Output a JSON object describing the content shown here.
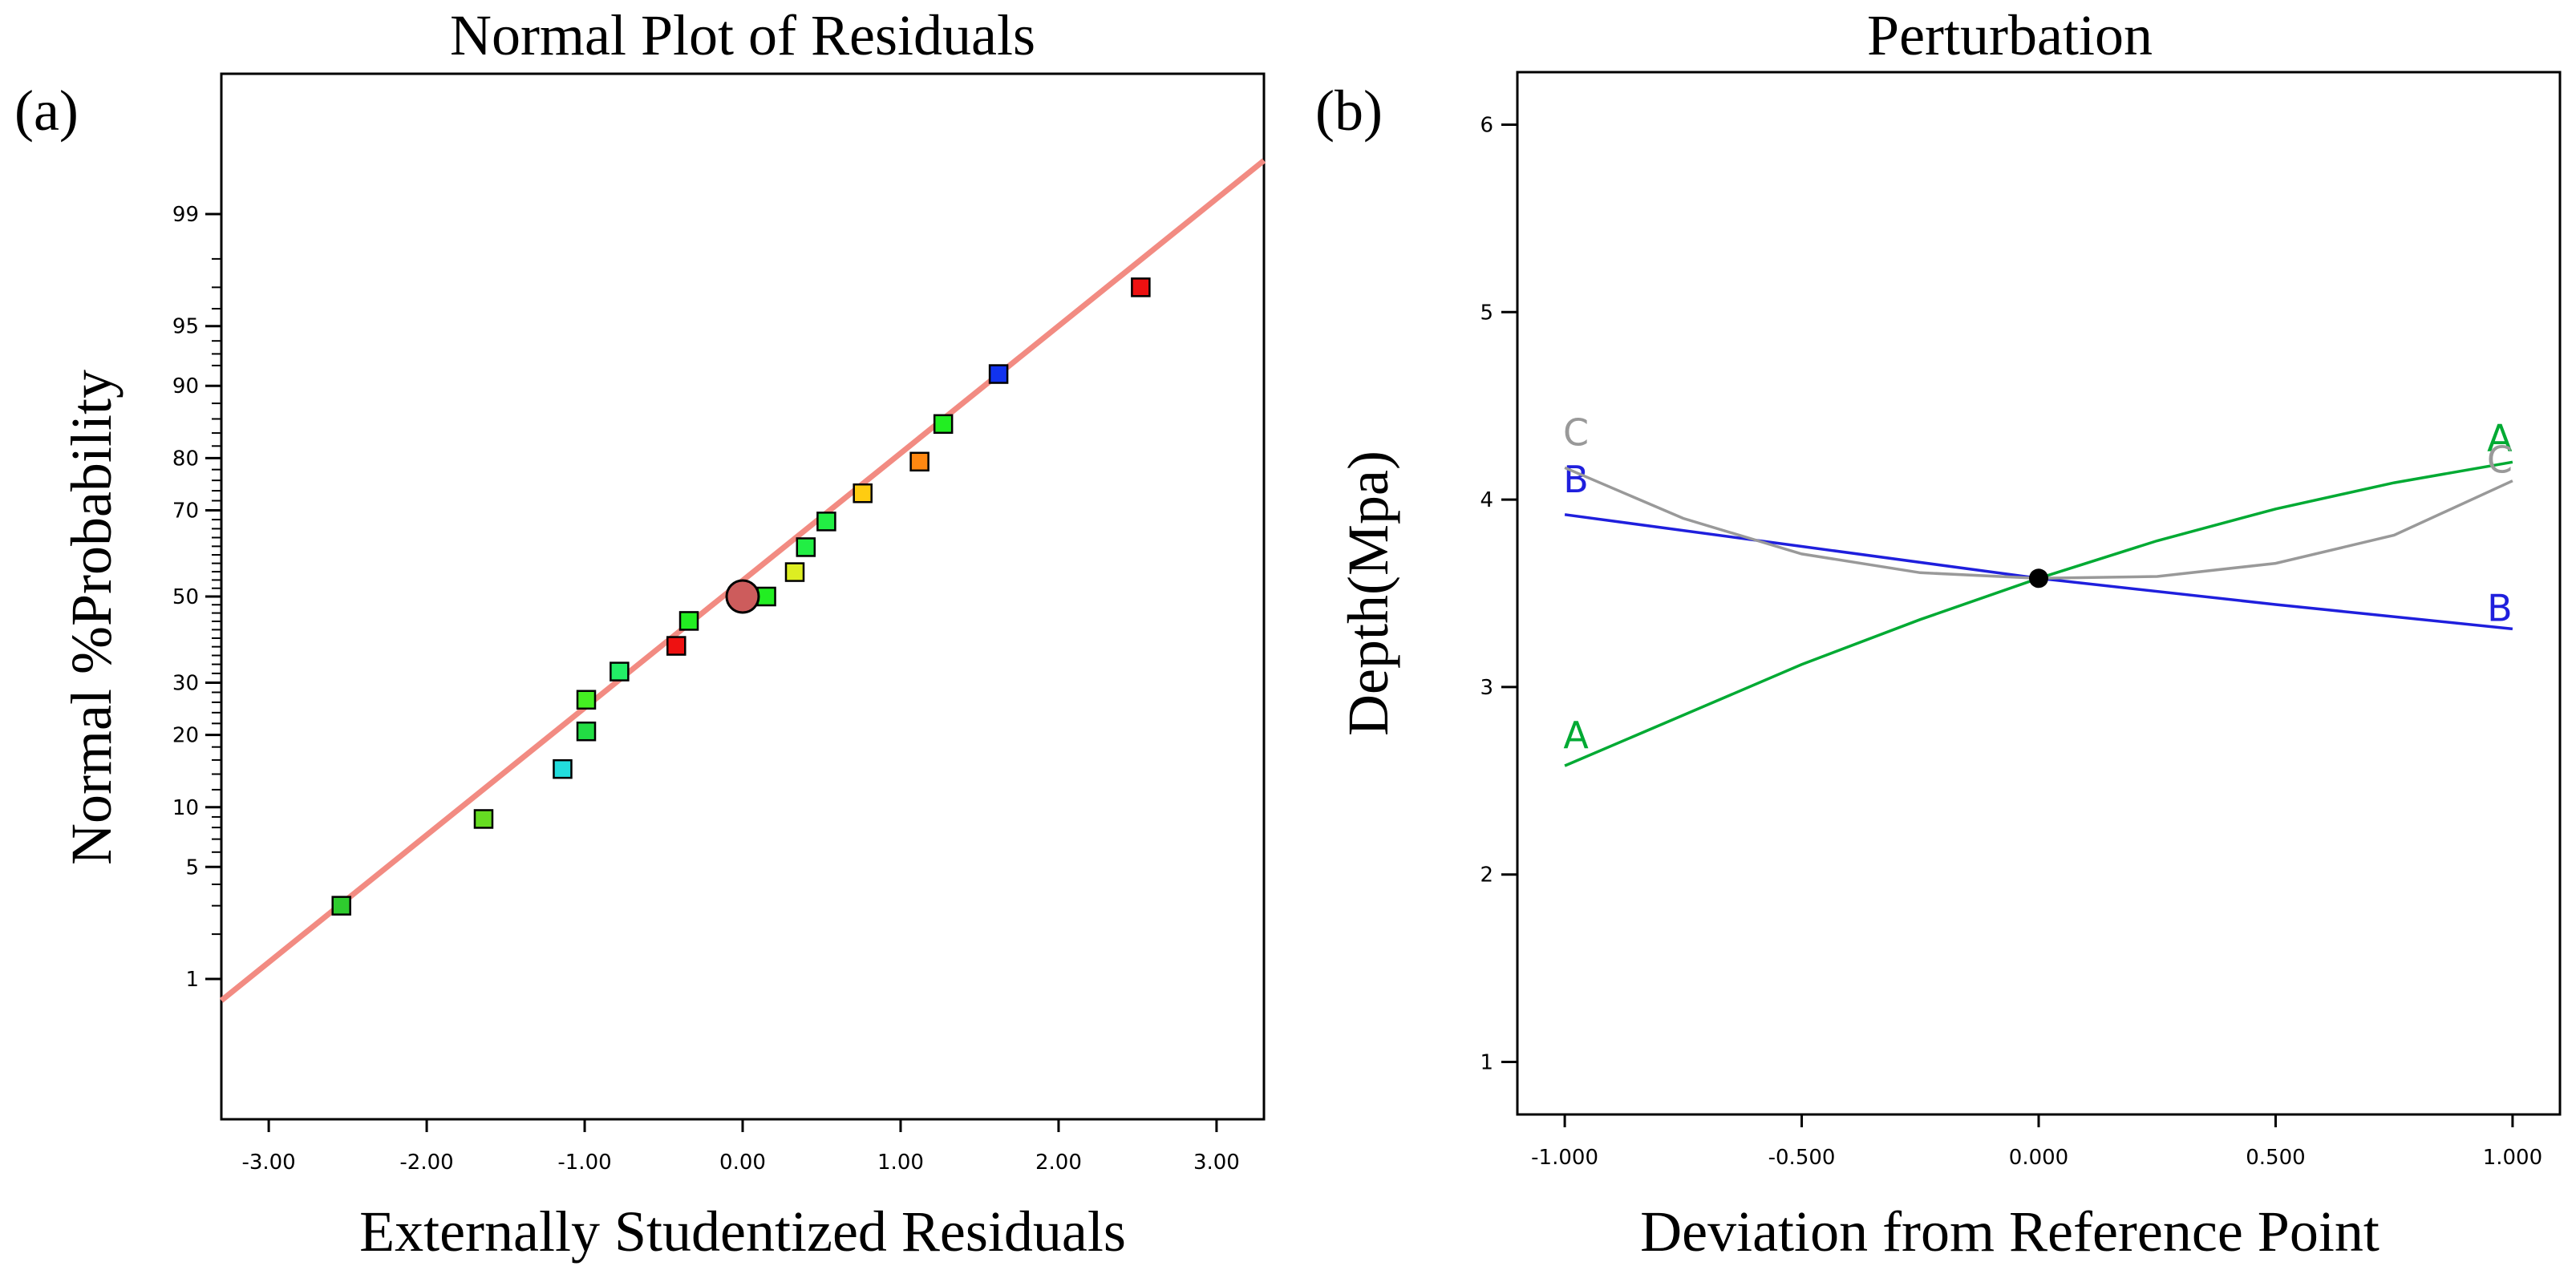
{
  "chart_data": [
    {
      "type": "scatter",
      "panel_label": "(a)",
      "title": "Normal Plot of Residuals",
      "xlabel": "Externally Studentized Residuals",
      "ylabel": "Normal %Probability",
      "xlim": [
        -3.3,
        3.3
      ],
      "x_ticks": [
        "-3.00",
        "-2.00",
        "-1.00",
        "0.00",
        "1.00",
        "2.00",
        "3.00"
      ],
      "x_tick_values": [
        -3,
        -2,
        -1,
        0,
        1,
        2,
        3
      ],
      "y_scale": "normal-probability",
      "y_tick_labels": [
        "1",
        "5",
        "10",
        "20",
        "30",
        "50",
        "70",
        "80",
        "90",
        "95",
        "99"
      ],
      "y_tick_values": [
        1,
        5,
        10,
        20,
        30,
        50,
        70,
        80,
        90,
        95,
        99
      ],
      "reference_line": {
        "color": "#f28b82",
        "from": [
          -3.3,
          0.7
        ],
        "to": [
          3.3,
          99.6
        ]
      },
      "center_marker": {
        "x": 0.0,
        "y": 50,
        "color": "#cd5c5c"
      },
      "points": [
        {
          "x": -2.54,
          "y": 3.0,
          "color": "#2ecc2e"
        },
        {
          "x": -1.64,
          "y": 8.8,
          "color": "#66dd22"
        },
        {
          "x": -1.14,
          "y": 14.7,
          "color": "#22dddd"
        },
        {
          "x": -0.99,
          "y": 20.6,
          "color": "#22dd44"
        },
        {
          "x": -0.99,
          "y": 26.5,
          "color": "#44ee22"
        },
        {
          "x": -0.78,
          "y": 32.4,
          "color": "#22ee66"
        },
        {
          "x": -0.42,
          "y": 38.2,
          "color": "#ee1111"
        },
        {
          "x": -0.34,
          "y": 44.1,
          "color": "#22ee22"
        },
        {
          "x": 0.15,
          "y": 50.0,
          "color": "#22ee22"
        },
        {
          "x": 0.33,
          "y": 55.9,
          "color": "#ddee22"
        },
        {
          "x": 0.4,
          "y": 61.8,
          "color": "#22ee44"
        },
        {
          "x": 0.53,
          "y": 67.6,
          "color": "#22ee44"
        },
        {
          "x": 0.76,
          "y": 73.5,
          "color": "#ffcc11"
        },
        {
          "x": 1.12,
          "y": 79.4,
          "color": "#ff8811"
        },
        {
          "x": 1.27,
          "y": 85.3,
          "color": "#22ee22"
        },
        {
          "x": 1.62,
          "y": 91.2,
          "color": "#1133ee"
        },
        {
          "x": 2.52,
          "y": 97.0,
          "color": "#ee1111"
        }
      ],
      "grid": false
    },
    {
      "type": "line",
      "panel_label": "(b)",
      "title": "Perturbation",
      "xlabel": "Deviation from Reference Point",
      "ylabel": "Depth(Mpa)",
      "xlim": [
        -1.1,
        1.1
      ],
      "ylim": [
        0.72,
        6.28
      ],
      "x_ticks": [
        "-1.000",
        "-0.500",
        "0.000",
        "0.500",
        "1.000"
      ],
      "x_tick_values": [
        -1,
        -0.5,
        0,
        0.5,
        1
      ],
      "y_ticks": [
        "1",
        "2",
        "3",
        "4",
        "5",
        "6"
      ],
      "y_tick_values": [
        1,
        2,
        3,
        4,
        5,
        6
      ],
      "reference_point": {
        "x": 0.0,
        "y": 3.58
      },
      "series": [
        {
          "name": "A",
          "color": "#00aa33",
          "x": [
            -1.0,
            -0.75,
            -0.5,
            -0.25,
            0.0,
            0.25,
            0.5,
            0.75,
            1.0
          ],
          "y": [
            2.58,
            2.85,
            3.12,
            3.36,
            3.58,
            3.78,
            3.95,
            4.09,
            4.2
          ]
        },
        {
          "name": "B",
          "color": "#1f1fdd",
          "x": [
            -1.0,
            -0.5,
            0.0,
            0.5,
            1.0
          ],
          "y": [
            3.92,
            3.75,
            3.58,
            3.44,
            3.31
          ]
        },
        {
          "name": "C",
          "color": "#999999",
          "x": [
            -1.0,
            -0.75,
            -0.5,
            -0.25,
            0.0,
            0.25,
            0.5,
            0.75,
            1.0
          ],
          "y": [
            4.17,
            3.9,
            3.71,
            3.61,
            3.58,
            3.59,
            3.66,
            3.81,
            4.1
          ]
        }
      ],
      "grid": false
    }
  ]
}
